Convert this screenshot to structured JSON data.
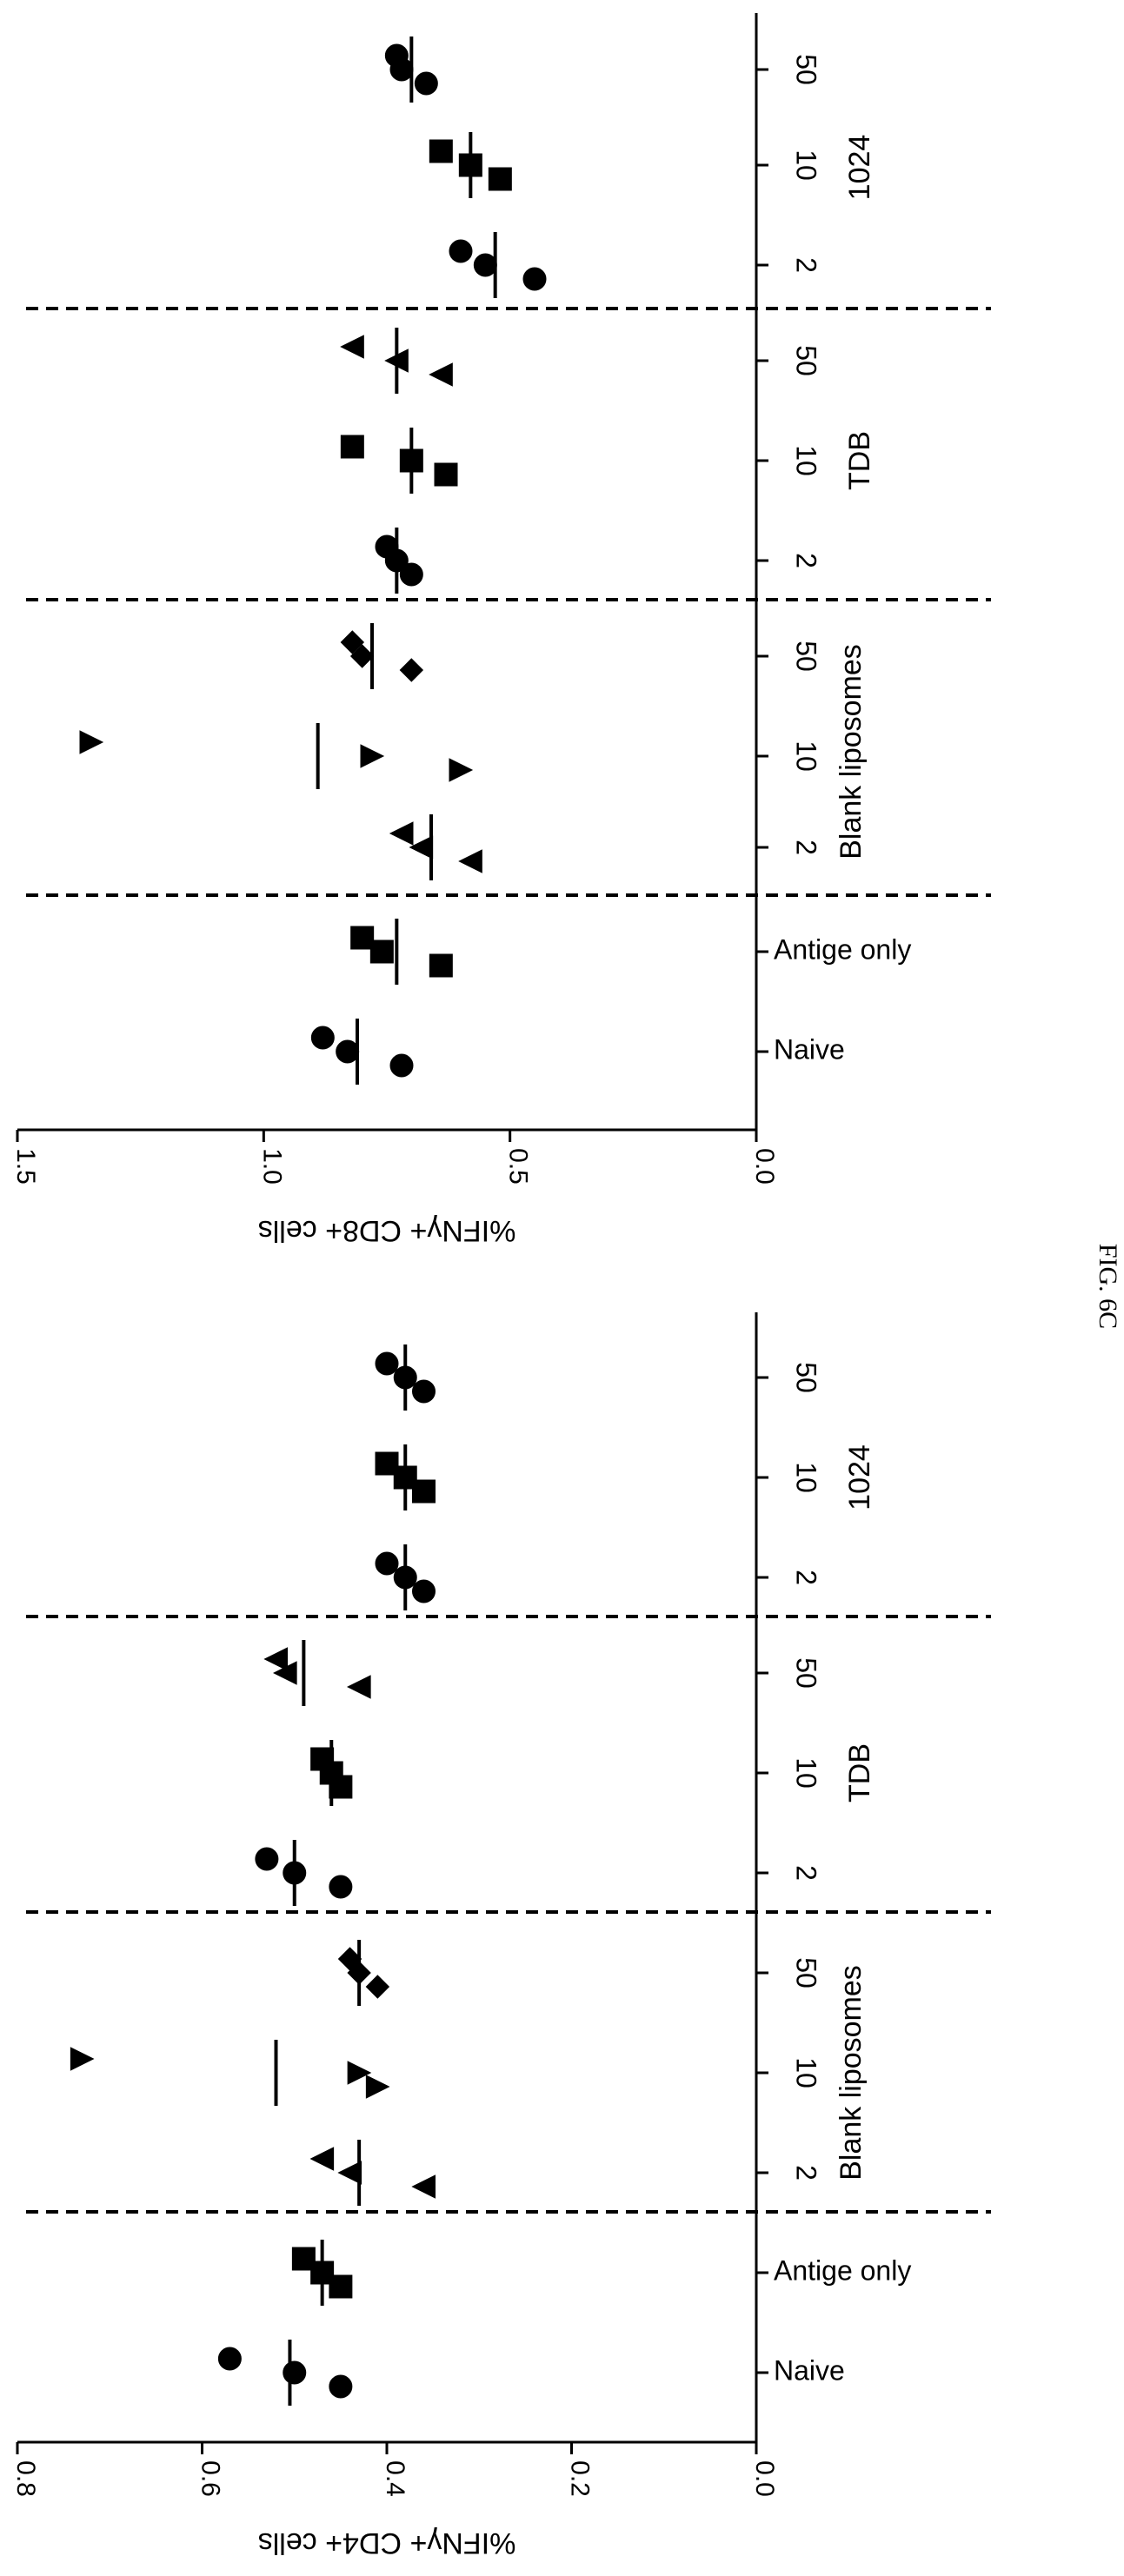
{
  "caption": "FIG. 6C",
  "chart_data": [
    {
      "type": "scatter",
      "ylabel": "%IFNγ+ CD8+ cells",
      "ylim": [
        0,
        1.5
      ],
      "yticks": [
        "1.5",
        "1.0",
        "0.5",
        "0.0"
      ],
      "categories": [
        "Naive",
        "Antige only",
        "2",
        "10",
        "50",
        "2",
        "10",
        "50",
        "2",
        "10",
        "50"
      ],
      "groups": [
        {
          "label": "Blank liposomes",
          "categories": [
            2,
            3,
            4
          ]
        },
        {
          "label": "TDB",
          "categories": [
            5,
            6,
            7
          ]
        },
        {
          "label": "1024",
          "categories": [
            8,
            9,
            10
          ]
        }
      ],
      "separators_after": [
        1,
        4,
        7
      ],
      "series": [
        {
          "marker": "circle",
          "values": [
            0.88,
            0.83,
            0.72
          ],
          "mean": 0.81
        },
        {
          "marker": "square",
          "values": [
            0.8,
            0.76,
            0.64
          ],
          "mean": 0.73
        },
        {
          "marker": "tri-left",
          "values": [
            0.72,
            0.68,
            0.58
          ],
          "mean": 0.66
        },
        {
          "marker": "tri-right",
          "values": [
            1.35,
            0.78,
            0.6
          ],
          "mean": 0.89
        },
        {
          "marker": "diamond",
          "values": [
            0.82,
            0.8,
            0.7
          ],
          "mean": 0.78
        },
        {
          "marker": "circle",
          "values": [
            0.75,
            0.73,
            0.7
          ],
          "mean": 0.73
        },
        {
          "marker": "square",
          "values": [
            0.82,
            0.7,
            0.63
          ],
          "mean": 0.7
        },
        {
          "marker": "tri-left",
          "values": [
            0.82,
            0.73,
            0.64
          ],
          "mean": 0.73
        },
        {
          "marker": "circle",
          "values": [
            0.6,
            0.55,
            0.45
          ],
          "mean": 0.53
        },
        {
          "marker": "square",
          "values": [
            0.64,
            0.58,
            0.52
          ],
          "mean": 0.58
        },
        {
          "marker": "circle",
          "values": [
            0.73,
            0.72,
            0.67
          ],
          "mean": 0.7
        }
      ]
    },
    {
      "type": "scatter",
      "ylabel": "%IFNγ+ CD4+ cells",
      "ylim": [
        0,
        0.8
      ],
      "yticks": [
        "0.8",
        "0.6",
        "0.4",
        "0.2",
        "0.0"
      ],
      "categories": [
        "Naive",
        "Antige only",
        "2",
        "10",
        "50",
        "2",
        "10",
        "50",
        "2",
        "10",
        "50"
      ],
      "groups": [
        {
          "label": "Blank liposomes",
          "categories": [
            2,
            3,
            4
          ]
        },
        {
          "label": "TDB",
          "categories": [
            5,
            6,
            7
          ]
        },
        {
          "label": "1024",
          "categories": [
            8,
            9,
            10
          ]
        }
      ],
      "separators_after": [
        1,
        4,
        7
      ],
      "series": [
        {
          "marker": "circle",
          "values": [
            0.57,
            0.5,
            0.45
          ],
          "mean": 0.505
        },
        {
          "marker": "square",
          "values": [
            0.49,
            0.47,
            0.45
          ],
          "mean": 0.47
        },
        {
          "marker": "tri-left",
          "values": [
            0.47,
            0.44,
            0.36
          ],
          "mean": 0.43
        },
        {
          "marker": "tri-right",
          "values": [
            0.73,
            0.43,
            0.41
          ],
          "mean": 0.52
        },
        {
          "marker": "diamond",
          "values": [
            0.44,
            0.43,
            0.41
          ],
          "mean": 0.43
        },
        {
          "marker": "circle",
          "values": [
            0.53,
            0.5,
            0.45
          ],
          "mean": 0.5
        },
        {
          "marker": "square",
          "values": [
            0.47,
            0.46,
            0.45
          ],
          "mean": 0.46
        },
        {
          "marker": "tri-left",
          "values": [
            0.52,
            0.51,
            0.43
          ],
          "mean": 0.49
        },
        {
          "marker": "circle",
          "values": [
            0.4,
            0.38,
            0.36
          ],
          "mean": 0.38
        },
        {
          "marker": "square",
          "values": [
            0.4,
            0.38,
            0.36
          ],
          "mean": 0.38
        },
        {
          "marker": "circle",
          "values": [
            0.4,
            0.38,
            0.36
          ],
          "mean": 0.38
        }
      ]
    }
  ]
}
